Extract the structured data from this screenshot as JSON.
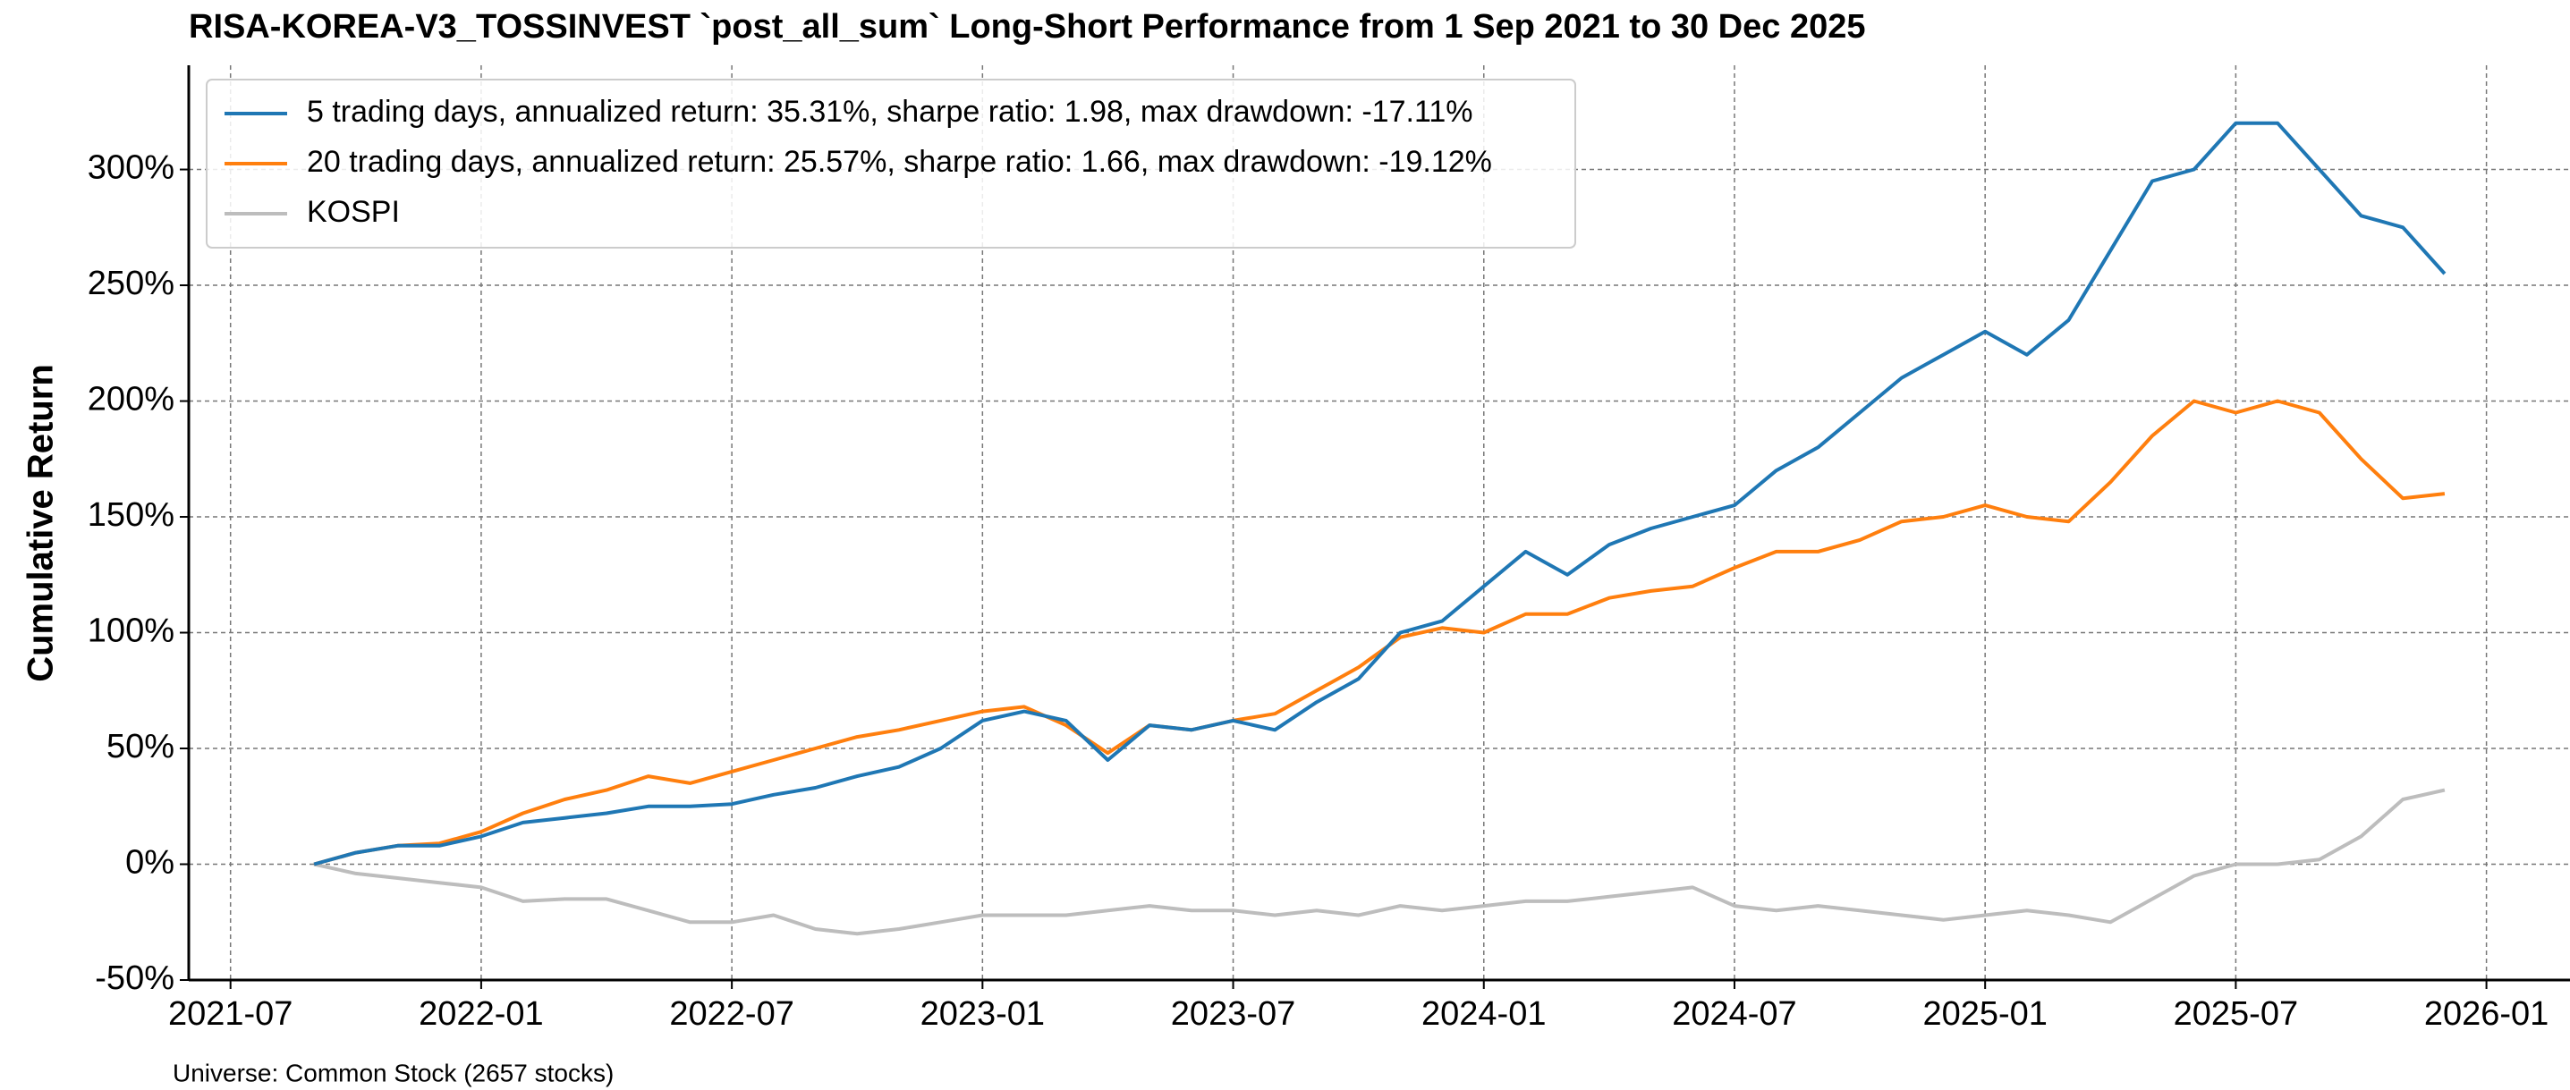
{
  "chart_data": {
    "type": "line",
    "title": "RISA-KOREA-V3_TOSSINVEST `post_all_sum` Long-Short Performance from 1 Sep 2021 to 30 Dec 2025",
    "ylabel": "Cumulative Return",
    "footnote": "Universe: Common Stock (2657 stocks)",
    "x": [
      "2021-09",
      "2021-10",
      "2021-11",
      "2021-12",
      "2022-01",
      "2022-02",
      "2022-03",
      "2022-04",
      "2022-05",
      "2022-06",
      "2022-07",
      "2022-08",
      "2022-09",
      "2022-10",
      "2022-11",
      "2022-12",
      "2023-01",
      "2023-02",
      "2023-03",
      "2023-04",
      "2023-05",
      "2023-06",
      "2023-07",
      "2023-08",
      "2023-09",
      "2023-10",
      "2023-11",
      "2023-12",
      "2024-01",
      "2024-02",
      "2024-03",
      "2024-04",
      "2024-05",
      "2024-06",
      "2024-07",
      "2024-08",
      "2024-09",
      "2024-10",
      "2024-11",
      "2024-12",
      "2025-01",
      "2025-02",
      "2025-03",
      "2025-04",
      "2025-05",
      "2025-06",
      "2025-07",
      "2025-08",
      "2025-09",
      "2025-10",
      "2025-11",
      "2025-12"
    ],
    "series": [
      {
        "name": "5 trading days, annualized return: 35.31%, sharpe ratio: 1.98, max drawdown: -17.11%",
        "color": "#1f77b4",
        "values": [
          0,
          5,
          8,
          8,
          12,
          18,
          20,
          22,
          25,
          25,
          26,
          30,
          33,
          38,
          42,
          50,
          62,
          66,
          62,
          45,
          60,
          58,
          62,
          58,
          70,
          80,
          100,
          105,
          120,
          135,
          125,
          138,
          145,
          150,
          155,
          170,
          180,
          195,
          210,
          220,
          230,
          220,
          235,
          265,
          295,
          300,
          320,
          320,
          300,
          280,
          275,
          255
        ]
      },
      {
        "name": "20 trading days, annualized return: 25.57%, sharpe ratio: 1.66, max drawdown: -19.12%",
        "color": "#ff7f0e",
        "values": [
          0,
          5,
          8,
          9,
          14,
          22,
          28,
          32,
          38,
          35,
          40,
          45,
          50,
          55,
          58,
          62,
          66,
          68,
          60,
          48,
          60,
          58,
          62,
          65,
          75,
          85,
          98,
          102,
          100,
          108,
          108,
          115,
          118,
          120,
          128,
          135,
          135,
          140,
          148,
          150,
          155,
          150,
          148,
          165,
          185,
          200,
          195,
          200,
          195,
          175,
          158,
          160
        ]
      },
      {
        "name": "KOSPI",
        "color": "#bdbdbd",
        "values": [
          0,
          -4,
          -6,
          -8,
          -10,
          -16,
          -15,
          -15,
          -20,
          -25,
          -25,
          -22,
          -28,
          -30,
          -28,
          -25,
          -22,
          -22,
          -22,
          -20,
          -18,
          -20,
          -20,
          -22,
          -20,
          -22,
          -18,
          -20,
          -18,
          -16,
          -16,
          -14,
          -12,
          -10,
          -18,
          -20,
          -18,
          -20,
          -22,
          -24,
          -22,
          -20,
          -22,
          -25,
          -15,
          -5,
          0,
          0,
          2,
          12,
          28,
          32
        ]
      }
    ],
    "xlim": [
      "2021-06",
      "2026-03"
    ],
    "xticks": [
      "2021-07",
      "2022-01",
      "2022-07",
      "2023-01",
      "2023-07",
      "2024-01",
      "2024-07",
      "2025-01",
      "2025-07",
      "2026-01"
    ],
    "ylim": [
      -50,
      345
    ],
    "yticks": [
      {
        "value": -50,
        "label": "-50%"
      },
      {
        "value": 0,
        "label": "0%"
      },
      {
        "value": 50,
        "label": "50%"
      },
      {
        "value": 100,
        "label": "100%"
      },
      {
        "value": 150,
        "label": "150%"
      },
      {
        "value": 200,
        "label": "200%"
      },
      {
        "value": 250,
        "label": "250%"
      },
      {
        "value": 300,
        "label": "300%"
      }
    ],
    "grid": true,
    "legend": "upper left"
  }
}
